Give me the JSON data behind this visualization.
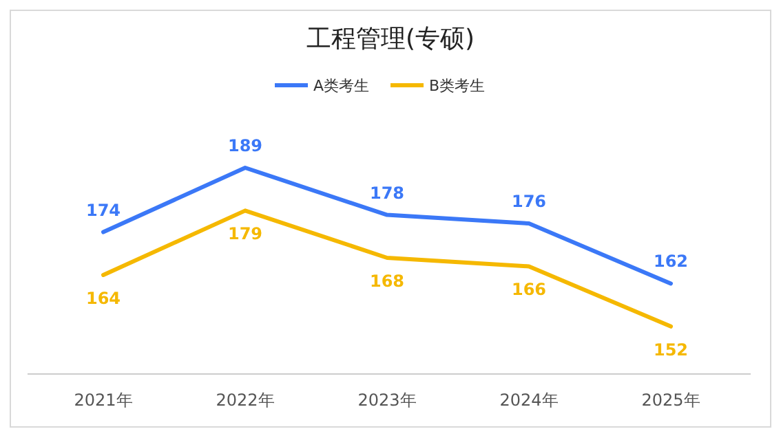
{
  "chart_data": {
    "type": "line",
    "title": "工程管理(专硕)",
    "categories": [
      "2021年",
      "2022年",
      "2023年",
      "2024年",
      "2025年"
    ],
    "series": [
      {
        "name": "A类考生",
        "color": "#3b78f7",
        "values": [
          174,
          189,
          178,
          176,
          162
        ]
      },
      {
        "name": "B类考生",
        "color": "#f5b800",
        "values": [
          164,
          179,
          168,
          166,
          152
        ]
      }
    ],
    "data_labels": true,
    "legend": "top",
    "marker": "none",
    "line_style": "solid",
    "grid": false
  }
}
